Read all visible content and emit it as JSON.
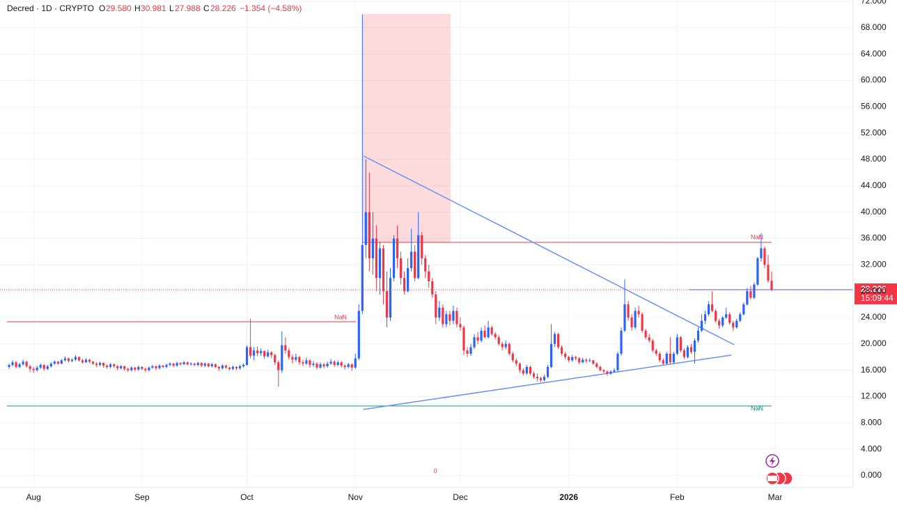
{
  "header": {
    "symbol": "Decred · 1D · CRYPTO",
    "o_label": "O",
    "o": "29.580",
    "h_label": "H",
    "h": "30.981",
    "l_label": "L",
    "l": "27.988",
    "c_label": "C",
    "c": "28.226",
    "change": "−1.354 (−4.58%)"
  },
  "chart_data": {
    "type": "candlestick",
    "up_color": "#2962ff",
    "down_color": "#f23645",
    "grid": true,
    "ylim": [
      0,
      72
    ],
    "yticks": [
      {
        "value": 0,
        "label": "0.000"
      },
      {
        "value": 4,
        "label": "4.000"
      },
      {
        "value": 8,
        "label": "8.000"
      },
      {
        "value": 12,
        "label": "12.000"
      },
      {
        "value": 16,
        "label": "16.000"
      },
      {
        "value": 20,
        "label": "20.000"
      },
      {
        "value": 24,
        "label": "24.000"
      },
      {
        "value": 28,
        "label": "28.000"
      },
      {
        "value": 32,
        "label": "32.000"
      },
      {
        "value": 36,
        "label": "36.000"
      },
      {
        "value": 40,
        "label": "40.000"
      },
      {
        "value": 44,
        "label": "44.000"
      },
      {
        "value": 48,
        "label": "48.000"
      },
      {
        "value": 52,
        "label": "52.000"
      },
      {
        "value": 56,
        "label": "56.000"
      },
      {
        "value": 60,
        "label": "60.000"
      },
      {
        "value": 64,
        "label": "64.000"
      },
      {
        "value": 68,
        "label": "68.000"
      },
      {
        "value": 72,
        "label": "72.000"
      }
    ],
    "xlim": [
      0,
      218
    ],
    "xticks": [
      {
        "value": 7,
        "label": "Aug"
      },
      {
        "value": 38,
        "label": "Sep"
      },
      {
        "value": 68,
        "label": "Oct"
      },
      {
        "value": 99,
        "label": "Nov"
      },
      {
        "value": 129,
        "label": "Dec"
      },
      {
        "value": 160,
        "label": "2026"
      },
      {
        "value": 191,
        "label": "Feb"
      },
      {
        "value": 219,
        "label": "Mar"
      }
    ],
    "last_price": {
      "value": 28.226,
      "label": "28.226"
    },
    "countdown": "15:09:44",
    "annotations": [
      "NaN",
      "NaN",
      "NaN",
      "0"
    ],
    "ohlc": [
      [
        16.5,
        17.0,
        16.2,
        16.8
      ],
      [
        16.8,
        17.5,
        16.6,
        17.2
      ],
      [
        17.2,
        17.4,
        16.3,
        16.5
      ],
      [
        16.5,
        17.1,
        16.3,
        16.9
      ],
      [
        16.9,
        17.6,
        16.7,
        17.3
      ],
      [
        17.3,
        17.4,
        16.4,
        16.6
      ],
      [
        16.6,
        16.8,
        15.7,
        16.2
      ],
      [
        16.2,
        16.5,
        15.6,
        16.0
      ],
      [
        16.0,
        16.7,
        15.8,
        16.4
      ],
      [
        16.4,
        17.0,
        16.2,
        16.8
      ],
      [
        16.8,
        16.9,
        15.9,
        16.2
      ],
      [
        16.2,
        16.8,
        16.0,
        16.6
      ],
      [
        16.6,
        17.2,
        16.4,
        17.0
      ],
      [
        17.0,
        17.5,
        16.8,
        17.3
      ],
      [
        17.3,
        17.4,
        16.8,
        17.0
      ],
      [
        17.0,
        17.7,
        16.9,
        17.5
      ],
      [
        17.5,
        18.1,
        17.3,
        17.8
      ],
      [
        17.8,
        17.9,
        17.2,
        17.4
      ],
      [
        17.4,
        17.8,
        17.2,
        17.6
      ],
      [
        17.6,
        18.3,
        17.4,
        18.0
      ],
      [
        18.0,
        18.1,
        17.3,
        17.5
      ],
      [
        17.5,
        17.7,
        17.0,
        17.2
      ],
      [
        17.2,
        17.8,
        17.1,
        17.6
      ],
      [
        17.6,
        17.7,
        17.1,
        17.3
      ],
      [
        17.3,
        17.4,
        16.8,
        17.0
      ],
      [
        17.0,
        17.2,
        16.5,
        16.8
      ],
      [
        16.8,
        17.3,
        16.6,
        17.1
      ],
      [
        17.1,
        17.2,
        16.4,
        16.7
      ],
      [
        16.7,
        16.9,
        16.2,
        16.5
      ],
      [
        16.5,
        17.1,
        16.3,
        16.9
      ],
      [
        16.9,
        17.0,
        16.3,
        16.6
      ],
      [
        16.6,
        16.8,
        16.0,
        16.3
      ],
      [
        16.3,
        16.8,
        16.1,
        16.6
      ],
      [
        16.6,
        16.7,
        15.9,
        16.2
      ],
      [
        16.2,
        16.4,
        15.7,
        16.0
      ],
      [
        16.0,
        16.6,
        15.8,
        16.4
      ],
      [
        16.4,
        16.5,
        15.8,
        16.1
      ],
      [
        16.1,
        16.7,
        15.9,
        16.5
      ],
      [
        16.5,
        16.6,
        16.0,
        16.2
      ],
      [
        16.2,
        16.4,
        15.7,
        16.0
      ],
      [
        16.0,
        16.6,
        15.8,
        16.4
      ],
      [
        16.4,
        16.8,
        16.2,
        16.6
      ],
      [
        16.6,
        16.7,
        16.0,
        16.3
      ],
      [
        16.3,
        16.9,
        16.1,
        16.7
      ],
      [
        16.7,
        16.8,
        16.3,
        16.5
      ],
      [
        16.5,
        17.0,
        16.3,
        16.8
      ],
      [
        16.8,
        17.2,
        16.6,
        17.0
      ],
      [
        17.0,
        17.1,
        16.5,
        16.7
      ],
      [
        16.7,
        17.3,
        16.5,
        17.1
      ],
      [
        17.1,
        17.2,
        16.7,
        16.9
      ],
      [
        16.9,
        17.4,
        16.8,
        17.2
      ],
      [
        17.2,
        17.3,
        16.7,
        16.9
      ],
      [
        16.9,
        17.2,
        16.7,
        17.0
      ],
      [
        17.0,
        17.1,
        16.6,
        16.8
      ],
      [
        16.8,
        17.3,
        16.6,
        17.1
      ],
      [
        17.1,
        17.2,
        16.5,
        16.7
      ],
      [
        16.7,
        17.2,
        16.5,
        17.0
      ],
      [
        17.0,
        17.1,
        16.4,
        16.6
      ],
      [
        16.6,
        17.1,
        16.4,
        16.9
      ],
      [
        16.9,
        17.0,
        16.3,
        16.5
      ],
      [
        16.5,
        16.6,
        15.9,
        16.3
      ],
      [
        16.3,
        16.9,
        16.1,
        16.7
      ],
      [
        16.7,
        16.8,
        16.2,
        16.4
      ],
      [
        16.4,
        16.5,
        15.9,
        16.2
      ],
      [
        16.2,
        16.7,
        16.0,
        16.5
      ],
      [
        16.5,
        16.6,
        16.0,
        16.3
      ],
      [
        16.3,
        16.8,
        16.1,
        16.6
      ],
      [
        16.6,
        17.0,
        16.4,
        16.8
      ],
      [
        16.8,
        19.8,
        16.7,
        19.5
      ],
      [
        19.5,
        23.8,
        17.8,
        18.2
      ],
      [
        18.2,
        19.5,
        17.5,
        19.0
      ],
      [
        19.0,
        19.6,
        18.1,
        18.6
      ],
      [
        18.6,
        19.3,
        18.2,
        18.9
      ],
      [
        18.9,
        19.0,
        17.7,
        18.1
      ],
      [
        18.1,
        19.1,
        17.9,
        18.7
      ],
      [
        18.7,
        18.9,
        17.8,
        18.3
      ],
      [
        18.3,
        18.5,
        16.8,
        17.2
      ],
      [
        17.2,
        17.5,
        13.5,
        16.0
      ],
      [
        16.0,
        21.9,
        15.6,
        19.8
      ],
      [
        19.8,
        21.0,
        18.5,
        19.0
      ],
      [
        19.0,
        19.4,
        17.6,
        18.0
      ],
      [
        18.0,
        18.4,
        17.0,
        17.6
      ],
      [
        17.6,
        18.5,
        17.3,
        18.0
      ],
      [
        18.0,
        18.2,
        16.8,
        17.2
      ],
      [
        17.2,
        17.6,
        16.6,
        17.0
      ],
      [
        17.0,
        17.9,
        16.8,
        17.5
      ],
      [
        17.5,
        17.7,
        16.4,
        16.8
      ],
      [
        16.8,
        17.4,
        16.5,
        17.0
      ],
      [
        17.0,
        17.2,
        16.1,
        16.4
      ],
      [
        16.4,
        17.2,
        16.2,
        16.9
      ],
      [
        16.9,
        17.1,
        16.3,
        16.6
      ],
      [
        16.6,
        17.3,
        16.4,
        17.0
      ],
      [
        17.0,
        17.7,
        16.8,
        17.3
      ],
      [
        17.3,
        17.5,
        16.5,
        16.8
      ],
      [
        16.8,
        17.5,
        16.6,
        17.2
      ],
      [
        17.2,
        17.4,
        16.4,
        16.7
      ],
      [
        16.7,
        16.9,
        16.1,
        16.5
      ],
      [
        16.5,
        17.1,
        16.3,
        16.9
      ],
      [
        16.9,
        17.0,
        15.9,
        16.4
      ],
      [
        16.4,
        18.5,
        16.2,
        17.8
      ],
      [
        17.8,
        26.0,
        17.5,
        25.0
      ],
      [
        25.0,
        70.0,
        24.5,
        35.0
      ],
      [
        35.0,
        48.0,
        33.0,
        40.0
      ],
      [
        40.0,
        46.0,
        31.0,
        33.0
      ],
      [
        33.0,
        40.0,
        30.5,
        36.0
      ],
      [
        36.0,
        38.0,
        28.0,
        30.0
      ],
      [
        30.0,
        35.5,
        27.5,
        34.5
      ],
      [
        34.5,
        35.0,
        26.0,
        28.0
      ],
      [
        28.0,
        31.0,
        22.5,
        24.0
      ],
      [
        24.0,
        31.5,
        23.5,
        30.0
      ],
      [
        30.0,
        36.5,
        29.5,
        36.0
      ],
      [
        36.0,
        38.0,
        31.5,
        33.0
      ],
      [
        33.0,
        34.0,
        29.0,
        30.0
      ],
      [
        30.0,
        31.0,
        27.5,
        28.0
      ],
      [
        28.0,
        33.0,
        27.8,
        31.5
      ],
      [
        31.5,
        37.5,
        31.0,
        34.0
      ],
      [
        34.0,
        35.0,
        29.5,
        30.0
      ],
      [
        30.0,
        40.0,
        29.8,
        36.5
      ],
      [
        36.5,
        37.0,
        32.0,
        33.0
      ],
      [
        33.0,
        33.5,
        30.0,
        31.0
      ],
      [
        31.0,
        32.0,
        28.5,
        29.5
      ],
      [
        29.5,
        30.0,
        27.0,
        27.5
      ],
      [
        27.5,
        28.0,
        23.0,
        24.0
      ],
      [
        24.0,
        26.5,
        23.5,
        25.5
      ],
      [
        25.5,
        26.0,
        22.5,
        23.0
      ],
      [
        23.0,
        25.0,
        22.5,
        24.5
      ],
      [
        24.5,
        25.0,
        22.8,
        23.5
      ],
      [
        23.5,
        25.8,
        23.0,
        25.0
      ],
      [
        25.0,
        25.5,
        22.5,
        23.0
      ],
      [
        23.0,
        24.0,
        22.0,
        22.5
      ],
      [
        22.5,
        22.8,
        18.3,
        19.0
      ],
      [
        19.0,
        19.5,
        18.0,
        18.5
      ],
      [
        18.5,
        20.0,
        18.2,
        19.5
      ],
      [
        19.5,
        21.5,
        19.2,
        21.0
      ],
      [
        21.0,
        21.8,
        20.0,
        20.5
      ],
      [
        20.5,
        22.5,
        20.2,
        22.0
      ],
      [
        22.0,
        22.8,
        20.8,
        21.0
      ],
      [
        21.0,
        23.5,
        20.8,
        22.5
      ],
      [
        22.5,
        22.8,
        21.2,
        21.5
      ],
      [
        21.5,
        21.8,
        20.7,
        21.0
      ],
      [
        21.0,
        21.3,
        19.7,
        20.0
      ],
      [
        20.0,
        20.3,
        19.0,
        19.5
      ],
      [
        19.5,
        20.5,
        19.2,
        20.0
      ],
      [
        20.0,
        20.2,
        18.2,
        18.5
      ],
      [
        18.5,
        18.8,
        17.2,
        17.5
      ],
      [
        17.5,
        17.8,
        16.6,
        17.0
      ],
      [
        17.0,
        17.2,
        15.6,
        16.0
      ],
      [
        16.0,
        16.3,
        15.2,
        15.5
      ],
      [
        15.5,
        16.8,
        15.3,
        16.5
      ],
      [
        16.5,
        16.7,
        15.2,
        15.5
      ],
      [
        15.5,
        15.8,
        14.7,
        15.0
      ],
      [
        15.0,
        15.5,
        14.3,
        14.8
      ],
      [
        14.8,
        15.0,
        14.2,
        14.5
      ],
      [
        14.5,
        15.3,
        14.3,
        15.0
      ],
      [
        15.0,
        16.8,
        14.8,
        16.5
      ],
      [
        16.5,
        23.0,
        16.3,
        20.0
      ],
      [
        20.0,
        21.8,
        19.5,
        21.5
      ],
      [
        21.5,
        21.7,
        19.2,
        19.5
      ],
      [
        19.5,
        19.8,
        18.2,
        18.5
      ],
      [
        18.5,
        18.8,
        17.7,
        18.0
      ],
      [
        18.0,
        18.2,
        17.2,
        17.5
      ],
      [
        17.5,
        18.3,
        17.3,
        18.0
      ],
      [
        18.0,
        18.2,
        17.5,
        17.8
      ],
      [
        17.8,
        18.0,
        16.9,
        17.2
      ],
      [
        17.2,
        17.9,
        17.0,
        17.6
      ],
      [
        17.6,
        17.8,
        17.1,
        17.4
      ],
      [
        17.4,
        17.8,
        17.2,
        17.5
      ],
      [
        17.5,
        17.6,
        16.8,
        17.0
      ],
      [
        17.0,
        17.2,
        16.3,
        16.5
      ],
      [
        16.5,
        16.7,
        15.8,
        16.0
      ],
      [
        16.0,
        16.2,
        15.6,
        15.8
      ],
      [
        15.8,
        16.0,
        15.2,
        15.5
      ],
      [
        15.5,
        16.0,
        15.3,
        15.8
      ],
      [
        15.8,
        16.3,
        15.6,
        16.0
      ],
      [
        16.0,
        18.8,
        15.8,
        18.5
      ],
      [
        18.5,
        22.5,
        18.2,
        22.0
      ],
      [
        22.0,
        29.8,
        21.8,
        26.0
      ],
      [
        26.0,
        26.5,
        23.5,
        24.0
      ],
      [
        24.0,
        24.5,
        22.0,
        22.5
      ],
      [
        22.5,
        25.5,
        22.2,
        25.0
      ],
      [
        25.0,
        25.8,
        24.0,
        24.5
      ],
      [
        24.5,
        24.8,
        21.7,
        22.0
      ],
      [
        22.0,
        22.3,
        20.7,
        21.0
      ],
      [
        21.0,
        21.5,
        20.2,
        20.5
      ],
      [
        20.5,
        20.8,
        18.7,
        19.0
      ],
      [
        19.0,
        19.3,
        18.2,
        18.5
      ],
      [
        18.5,
        18.8,
        17.2,
        17.5
      ],
      [
        17.5,
        17.8,
        16.8,
        17.0
      ],
      [
        17.0,
        18.8,
        16.8,
        18.5
      ],
      [
        18.5,
        21.0,
        17.0,
        17.2
      ],
      [
        17.2,
        18.8,
        17.0,
        18.5
      ],
      [
        18.5,
        21.5,
        18.3,
        21.0
      ],
      [
        21.0,
        21.2,
        18.7,
        19.0
      ],
      [
        19.0,
        19.3,
        17.7,
        18.0
      ],
      [
        18.0,
        19.8,
        17.8,
        19.5
      ],
      [
        19.5,
        20.0,
        18.5,
        18.8
      ],
      [
        18.8,
        20.8,
        17.0,
        20.5
      ],
      [
        20.5,
        22.5,
        20.2,
        22.0
      ],
      [
        22.0,
        24.5,
        21.8,
        23.5
      ],
      [
        23.5,
        25.0,
        23.0,
        24.5
      ],
      [
        24.5,
        26.5,
        24.2,
        26.0
      ],
      [
        26.0,
        28.0,
        24.8,
        25.0
      ],
      [
        25.0,
        25.3,
        23.2,
        23.5
      ],
      [
        23.5,
        23.8,
        22.3,
        22.8
      ],
      [
        22.8,
        24.2,
        22.5,
        24.0
      ],
      [
        24.0,
        25.5,
        23.8,
        24.5
      ],
      [
        24.5,
        24.8,
        22.9,
        23.2
      ],
      [
        23.2,
        23.5,
        22.0,
        22.5
      ],
      [
        22.5,
        23.8,
        22.3,
        23.5
      ],
      [
        23.5,
        24.8,
        23.3,
        24.5
      ],
      [
        24.5,
        26.3,
        24.3,
        26.0
      ],
      [
        26.0,
        28.5,
        25.8,
        28.0
      ],
      [
        28.0,
        28.8,
        26.7,
        27.0
      ],
      [
        27.0,
        29.3,
        26.8,
        29.0
      ],
      [
        29.0,
        33.2,
        28.8,
        33.0
      ],
      [
        33.0,
        36.8,
        32.5,
        34.5
      ],
      [
        34.5,
        34.8,
        31.5,
        32.0
      ],
      [
        32.0,
        33.5,
        29.3,
        29.58
      ],
      [
        29.58,
        30.981,
        27.988,
        28.226
      ]
    ]
  }
}
